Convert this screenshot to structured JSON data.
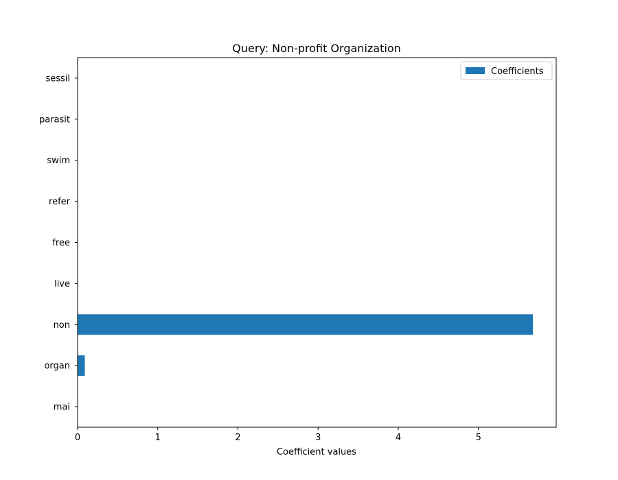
{
  "chart_data": {
    "type": "bar",
    "orientation": "horizontal",
    "title": "Query: Non-profit Organization",
    "xlabel": "Coefficient values",
    "ylabel": "",
    "categories": [
      "mai",
      "organ",
      "non",
      "live",
      "free",
      "refer",
      "swim",
      "parasit",
      "sessil"
    ],
    "series": [
      {
        "name": "Coefficients",
        "values": [
          0,
          0.09,
          5.68,
          0,
          0,
          0,
          0,
          0,
          0
        ]
      }
    ],
    "xlim": [
      0,
      5.97
    ],
    "xticks": [
      "0",
      "1",
      "2",
      "3",
      "4",
      "5"
    ],
    "grid": false,
    "legend_position": "top-right",
    "colors": {
      "bar": "#1f77b4",
      "axes": "#000000",
      "background": "#ffffff",
      "legend_border": "#cccccc"
    }
  }
}
